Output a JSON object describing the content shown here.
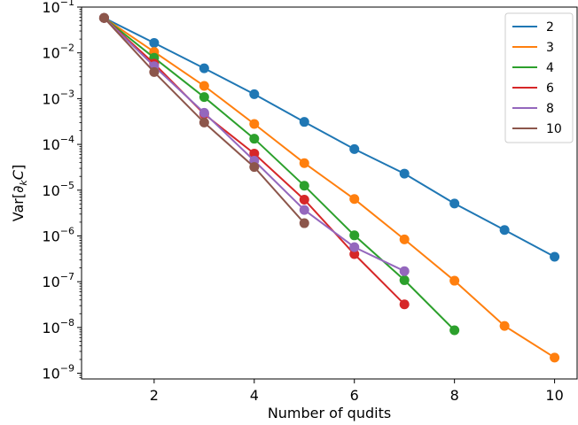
{
  "chart_data": {
    "type": "line",
    "xlabel": "Number of qudits",
    "ylabel": "Var[∂ₖC]",
    "ylabel_parts": {
      "prefix": "Var[",
      "var": "∂",
      "sub": "k",
      "var2": "C",
      "suffix": "]"
    },
    "yscale": "log",
    "xlim": [
      0.55,
      10.45
    ],
    "ylim": [
      7.5e-10,
      0.1
    ],
    "xticks": [
      2,
      4,
      6,
      8,
      10
    ],
    "yticks": [
      {
        "value": 1e-09,
        "base": "10",
        "exp": "−9"
      },
      {
        "value": 1e-08,
        "base": "10",
        "exp": "−8"
      },
      {
        "value": 1e-07,
        "base": "10",
        "exp": "−7"
      },
      {
        "value": 1e-06,
        "base": "10",
        "exp": "−6"
      },
      {
        "value": 1e-05,
        "base": "10",
        "exp": "−5"
      },
      {
        "value": 0.0001,
        "base": "10",
        "exp": "−4"
      },
      {
        "value": 0.001,
        "base": "10",
        "exp": "−3"
      },
      {
        "value": 0.01,
        "base": "10",
        "exp": "−2"
      },
      {
        "value": 0.1,
        "base": "10",
        "exp": "−1"
      }
    ],
    "grid": false,
    "legend_position": "top-right",
    "series": [
      {
        "name": "2",
        "color": "#1f77b4",
        "x": [
          1,
          2,
          3,
          4,
          5,
          6,
          7,
          8,
          9,
          10
        ],
        "y": [
          0.058,
          0.0165,
          0.0046,
          0.00125,
          0.00031,
          7.9e-05,
          2.3e-05,
          5.1e-06,
          1.35e-06,
          3.5e-07
        ]
      },
      {
        "name": "3",
        "color": "#ff7f0e",
        "x": [
          1,
          2,
          3,
          4,
          5,
          6,
          7,
          8,
          9,
          10
        ],
        "y": [
          0.058,
          0.0105,
          0.0019,
          0.00028,
          3.9e-05,
          6.4e-06,
          8.4e-07,
          1.05e-07,
          1.08e-08,
          2.2e-09
        ]
      },
      {
        "name": "4",
        "color": "#2ca02c",
        "x": [
          1,
          2,
          3,
          4,
          5,
          6,
          7,
          8
        ],
        "y": [
          0.058,
          0.0078,
          0.00108,
          0.000133,
          1.25e-05,
          1.03e-06,
          1.08e-07,
          8.7e-09
        ]
      },
      {
        "name": "6",
        "color": "#d62728",
        "x": [
          1,
          2,
          3,
          4,
          5,
          6,
          7
        ],
        "y": [
          0.058,
          0.0058,
          0.00046,
          6.3e-05,
          6.2e-06,
          4e-07,
          3.2e-08
        ]
      },
      {
        "name": "8",
        "color": "#9467bd",
        "x": [
          1,
          2,
          3,
          4,
          5,
          6,
          7
        ],
        "y": [
          0.058,
          0.0051,
          0.00049,
          4.4e-05,
          3.7e-06,
          5.7e-07,
          1.7e-07
        ]
      },
      {
        "name": "10",
        "color": "#8c564b",
        "x": [
          1,
          2,
          3,
          4,
          5
        ],
        "y": [
          0.058,
          0.0038,
          0.0003,
          3.2e-05,
          1.9e-06
        ]
      }
    ]
  }
}
